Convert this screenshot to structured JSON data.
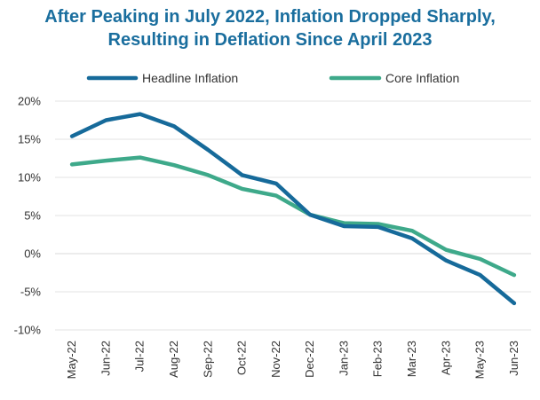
{
  "chart_data": {
    "type": "line",
    "title_line1": "After Peaking in July 2022, Inflation Dropped Sharply,",
    "title_line2": "Resulting in Deflation Since April 2023",
    "xlabel": "",
    "ylabel": "",
    "categories": [
      "May-22",
      "Jun-22",
      "Jul-22",
      "Aug-22",
      "Sep-22",
      "Oct-22",
      "Nov-22",
      "Dec-22",
      "Jan-23",
      "Feb-23",
      "Mar-23",
      "Apr-23",
      "May-23",
      "Jun-23"
    ],
    "ylim": [
      -10,
      20
    ],
    "yticks": [
      20,
      15,
      10,
      5,
      0,
      -5,
      -10
    ],
    "ytick_labels": [
      "20%",
      "15%",
      "10%",
      "5%",
      "0%",
      "-5%",
      "-10%"
    ],
    "grid": true,
    "legend_position": "top",
    "series": [
      {
        "name": "Headline Inflation",
        "color": "#166a9a",
        "values": [
          15.4,
          17.5,
          18.3,
          16.7,
          13.6,
          10.3,
          9.2,
          5.1,
          3.6,
          3.5,
          2.0,
          -0.9,
          -2.8,
          -6.5
        ]
      },
      {
        "name": "Core Inflation",
        "color": "#3ea98a",
        "values": [
          11.7,
          12.2,
          12.6,
          11.6,
          10.3,
          8.5,
          7.6,
          5.1,
          4.0,
          3.9,
          3.0,
          0.5,
          -0.7,
          -2.8
        ]
      }
    ]
  }
}
